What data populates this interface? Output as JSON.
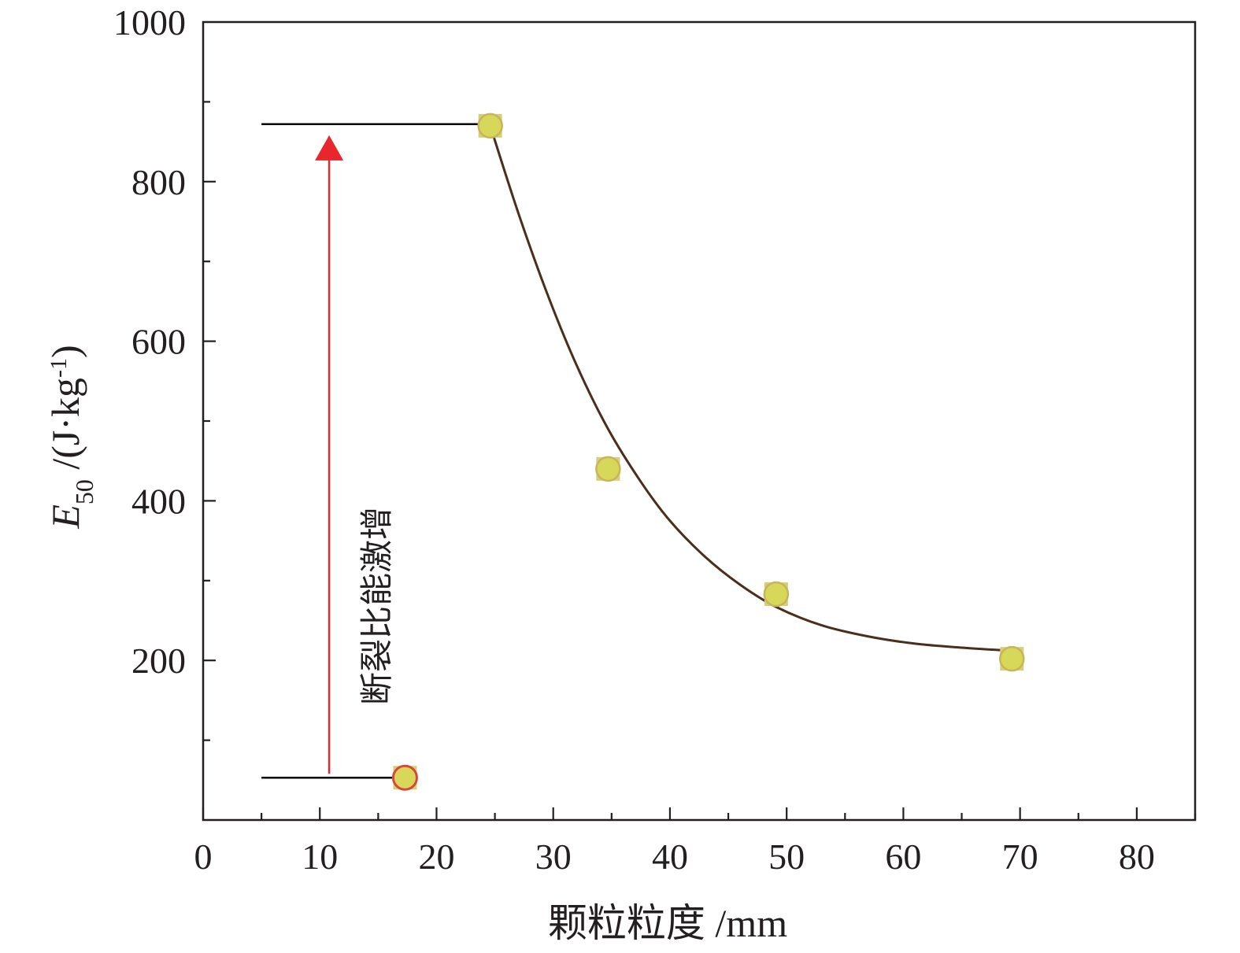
{
  "chart_data": {
    "type": "scatter",
    "xlabel": "颗粒粒度 /mm",
    "ylabel": {
      "symbol": "E",
      "subscript": "50",
      "unit_prefix": " /(J·kg",
      "unit_superscript": "-1",
      "unit_suffix": ")"
    },
    "xlim": [
      0,
      85
    ],
    "ylim": [
      0,
      1000
    ],
    "x_ticks": [
      "0",
      "10",
      "20",
      "30",
      "40",
      "50",
      "60",
      "70",
      "80"
    ],
    "y_ticks": [
      "200",
      "400",
      "600",
      "800",
      "1000"
    ],
    "x_minor_step": 5,
    "y_minor_step": 100,
    "grid": false,
    "series": [
      {
        "points": [
          {
            "x": 17.3,
            "y": 53,
            "highlight": true
          },
          {
            "x": 24.6,
            "y": 870
          },
          {
            "x": 34.7,
            "y": 440
          },
          {
            "x": 49.1,
            "y": 283
          },
          {
            "x": 69.3,
            "y": 202
          }
        ],
        "marker_fill": "#d7d85a",
        "marker_square": "#d6cf7a",
        "marker_edge": "#c8b45a",
        "highlight_edge": "#d9473c"
      }
    ],
    "fit_curve": {
      "x": [
        24.6,
        27,
        29.5,
        32,
        34.7,
        37.5,
        40,
        43,
        46,
        49.1,
        53,
        57,
        61,
        65,
        69.3
      ],
      "y": [
        870,
        761,
        659,
        570,
        490,
        424,
        375,
        330,
        295,
        267,
        244,
        230,
        221,
        216,
        212
      ],
      "color": "#4a2f1c"
    },
    "annotations": {
      "high_line": {
        "x1": 5,
        "x2": 24.6,
        "y": 872
      },
      "low_line": {
        "x1": 5,
        "x2": 17.3,
        "y": 53
      },
      "arrow": {
        "x": 10.8,
        "y_start": 53,
        "y_end": 870,
        "color": "#e8262b"
      },
      "text": "断裂比能激增"
    }
  }
}
